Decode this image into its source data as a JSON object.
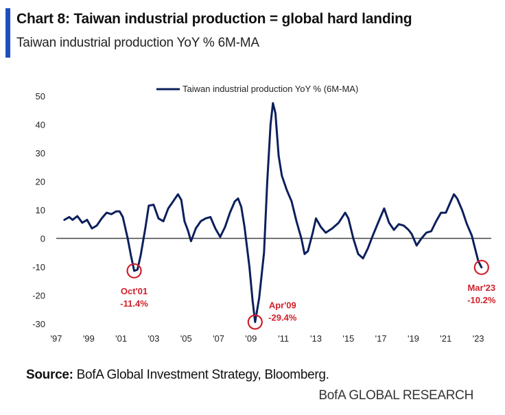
{
  "header": {
    "title": "Chart 8: Taiwan industrial production = global hard landing",
    "subtitle": "Taiwan industrial production YoY % 6M-MA"
  },
  "footer": {
    "source_label": "Source:",
    "source_text": " BofA Global Investment Strategy, Bloomberg.",
    "brand": "BofA GLOBAL RESEARCH"
  },
  "colors": {
    "accent": "#1f4fbf",
    "series": "#0b1f5c",
    "annotation": "#d0202a"
  },
  "chart_data": {
    "type": "line",
    "title": "",
    "xlabel": "",
    "ylabel": "",
    "xlim": [
      1997.0,
      2023.8
    ],
    "ylim": [
      -30,
      50
    ],
    "y_ticks": [
      50,
      40,
      30,
      20,
      10,
      0,
      -10,
      -20,
      -30
    ],
    "x_ticks": [
      {
        "label": "'97",
        "year": 1997
      },
      {
        "label": "'99",
        "year": 1999
      },
      {
        "label": "'01",
        "year": 2001
      },
      {
        "label": "'03",
        "year": 2003
      },
      {
        "label": "'05",
        "year": 2005
      },
      {
        "label": "'07",
        "year": 2007
      },
      {
        "label": "'09",
        "year": 2009
      },
      {
        "label": "'11",
        "year": 2011
      },
      {
        "label": "'13",
        "year": 2013
      },
      {
        "label": "'15",
        "year": 2015
      },
      {
        "label": "'17",
        "year": 2017
      },
      {
        "label": "'19",
        "year": 2019
      },
      {
        "label": "'21",
        "year": 2021
      },
      {
        "label": "'23",
        "year": 2023
      }
    ],
    "legend": "top-center",
    "series": [
      {
        "name": "Taiwan industrial production YoY % (6M-MA)",
        "points": [
          [
            1997.5,
            6.5
          ],
          [
            1997.8,
            7.5
          ],
          [
            1998.0,
            6.5
          ],
          [
            1998.3,
            7.8
          ],
          [
            1998.6,
            5.5
          ],
          [
            1998.9,
            6.5
          ],
          [
            1999.2,
            3.5
          ],
          [
            1999.5,
            4.5
          ],
          [
            1999.8,
            7.0
          ],
          [
            2000.1,
            9.0
          ],
          [
            2000.4,
            8.5
          ],
          [
            2000.7,
            9.5
          ],
          [
            2000.9,
            9.5
          ],
          [
            2001.1,
            7.5
          ],
          [
            2001.4,
            0.0
          ],
          [
            2001.6,
            -6.0
          ],
          [
            2001.8,
            -11.4
          ],
          [
            2002.0,
            -11.0
          ],
          [
            2002.2,
            -6.0
          ],
          [
            2002.5,
            4.0
          ],
          [
            2002.7,
            11.5
          ],
          [
            2003.0,
            11.8
          ],
          [
            2003.3,
            7.0
          ],
          [
            2003.6,
            6.0
          ],
          [
            2003.9,
            10.5
          ],
          [
            2004.2,
            13.0
          ],
          [
            2004.5,
            15.5
          ],
          [
            2004.7,
            13.5
          ],
          [
            2004.9,
            6.0
          ],
          [
            2005.1,
            3.0
          ],
          [
            2005.3,
            -1.0
          ],
          [
            2005.6,
            3.5
          ],
          [
            2005.9,
            6.0
          ],
          [
            2006.2,
            7.0
          ],
          [
            2006.5,
            7.5
          ],
          [
            2006.8,
            3.5
          ],
          [
            2007.1,
            0.5
          ],
          [
            2007.4,
            4.0
          ],
          [
            2007.7,
            9.0
          ],
          [
            2008.0,
            13.0
          ],
          [
            2008.2,
            14.0
          ],
          [
            2008.4,
            11.0
          ],
          [
            2008.6,
            4.0
          ],
          [
            2008.9,
            -10.0
          ],
          [
            2009.1,
            -22.0
          ],
          [
            2009.25,
            -29.4
          ],
          [
            2009.5,
            -21.0
          ],
          [
            2009.8,
            -5.0
          ],
          [
            2010.0,
            20.0
          ],
          [
            2010.2,
            40.0
          ],
          [
            2010.35,
            47.5
          ],
          [
            2010.5,
            44.0
          ],
          [
            2010.7,
            29.0
          ],
          [
            2010.9,
            22.0
          ],
          [
            2011.2,
            17.0
          ],
          [
            2011.5,
            13.0
          ],
          [
            2011.8,
            6.0
          ],
          [
            2012.1,
            0.0
          ],
          [
            2012.3,
            -5.5
          ],
          [
            2012.5,
            -4.5
          ],
          [
            2012.8,
            2.0
          ],
          [
            2013.0,
            7.0
          ],
          [
            2013.3,
            4.0
          ],
          [
            2013.6,
            2.0
          ],
          [
            2014.0,
            3.5
          ],
          [
            2014.4,
            5.5
          ],
          [
            2014.8,
            9.0
          ],
          [
            2015.0,
            7.0
          ],
          [
            2015.3,
            0.0
          ],
          [
            2015.6,
            -5.5
          ],
          [
            2015.9,
            -7.0
          ],
          [
            2016.2,
            -3.5
          ],
          [
            2016.5,
            1.0
          ],
          [
            2016.9,
            6.5
          ],
          [
            2017.2,
            10.5
          ],
          [
            2017.5,
            5.5
          ],
          [
            2017.8,
            3.0
          ],
          [
            2018.1,
            5.0
          ],
          [
            2018.4,
            4.5
          ],
          [
            2018.7,
            3.0
          ],
          [
            2018.9,
            1.5
          ],
          [
            2019.2,
            -2.5
          ],
          [
            2019.5,
            0.0
          ],
          [
            2019.8,
            2.0
          ],
          [
            2020.1,
            2.5
          ],
          [
            2020.4,
            6.0
          ],
          [
            2020.7,
            9.0
          ],
          [
            2021.0,
            9.0
          ],
          [
            2021.3,
            13.0
          ],
          [
            2021.5,
            15.5
          ],
          [
            2021.7,
            14.0
          ],
          [
            2022.0,
            10.0
          ],
          [
            2022.3,
            5.0
          ],
          [
            2022.6,
            1.0
          ],
          [
            2022.8,
            -3.5
          ],
          [
            2023.0,
            -8.0
          ],
          [
            2023.2,
            -10.2
          ]
        ]
      }
    ],
    "annotations": [
      {
        "x": 2001.8,
        "y": -11.4,
        "label": "Oct'01",
        "value": "-11.4%",
        "label_side": "below"
      },
      {
        "x": 2009.25,
        "y": -29.4,
        "label": "Apr'09",
        "value": "-29.4%",
        "label_side": "right"
      },
      {
        "x": 2023.2,
        "y": -10.2,
        "label": "Mar'23",
        "value": "-10.2%",
        "label_side": "below"
      }
    ]
  }
}
